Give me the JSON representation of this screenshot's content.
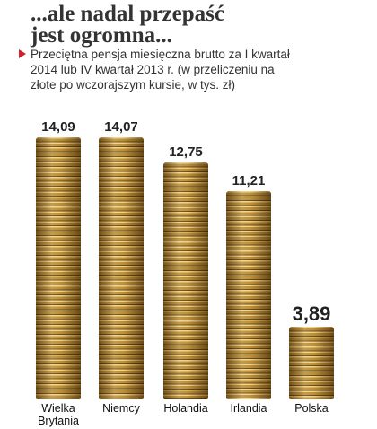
{
  "chart_data": {
    "type": "bar",
    "title": "...ale nadal przepaść jest ogromna...",
    "subtitle": "Przeciętna pensja miesięczna brutto za I kwartał 2014 lub IV kwartał 2013 r. (w przeliczeniu na złote po wczorajszym kursie, w tys. zł)",
    "categories": [
      "Wielka Brytania",
      "Niemcy",
      "Holandia",
      "Irlandia",
      "Polska"
    ],
    "values": [
      14.09,
      14.07,
      12.75,
      11.21,
      3.89
    ],
    "value_labels": [
      "14,09",
      "14,07",
      "12,75",
      "11,21",
      "3,89"
    ],
    "color": "#b0802a"
  }
}
